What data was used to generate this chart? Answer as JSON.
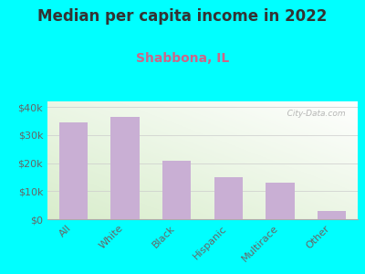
{
  "title": "Median per capita income in 2022",
  "subtitle": "Shabbona, IL",
  "categories": [
    "All",
    "White",
    "Black",
    "Hispanic",
    "Multirace",
    "Other"
  ],
  "values": [
    34500,
    36500,
    21000,
    15000,
    13000,
    2800
  ],
  "bar_color": "#c9afd4",
  "background_color": "#00ffff",
  "plot_bg_color": "#eef5e0",
  "title_color": "#333333",
  "subtitle_color": "#cc6688",
  "tick_color": "#666666",
  "ylim": [
    0,
    42000
  ],
  "yticks": [
    0,
    10000,
    20000,
    30000,
    40000
  ],
  "ytick_labels": [
    "$0",
    "$10k",
    "$20k",
    "$30k",
    "$40k"
  ],
  "watermark": "   City-Data.com",
  "title_fontsize": 12,
  "subtitle_fontsize": 10,
  "bar_width": 0.55
}
